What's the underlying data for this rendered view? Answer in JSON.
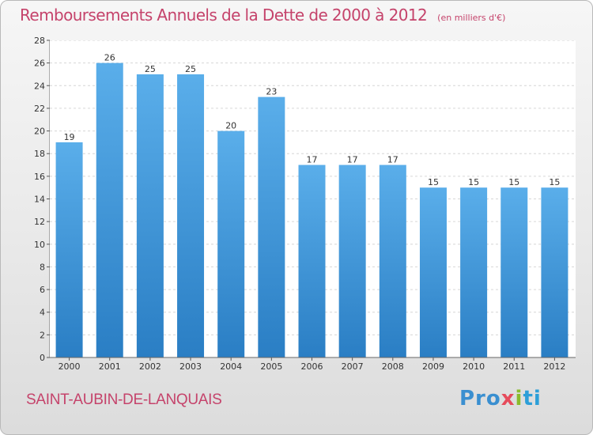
{
  "chart_data": {
    "type": "bar",
    "title": "Remboursements Annuels de la Dette de 2000 à 2012",
    "subtitle": "(en milliers d'€)",
    "categories": [
      "2000",
      "2001",
      "2002",
      "2003",
      "2004",
      "2005",
      "2006",
      "2007",
      "2008",
      "2009",
      "2010",
      "2011",
      "2012"
    ],
    "values": [
      19,
      26,
      25,
      25,
      20,
      23,
      17,
      17,
      17,
      15,
      15,
      15,
      15
    ],
    "ylim": [
      0,
      28
    ],
    "yticks": [
      0,
      2,
      4,
      6,
      8,
      10,
      12,
      14,
      16,
      18,
      20,
      22,
      24,
      26,
      28
    ],
    "grid": "horizontal",
    "legend": "none",
    "bar_color_top": "#5aaeea",
    "bar_color_bottom": "#2a7ec4",
    "title_color": "#c5436b"
  },
  "footer": {
    "commune": "SAINT-AUBIN-DE-LANQUAIS",
    "logo": [
      "Pro",
      "x",
      "i",
      "ti"
    ]
  }
}
